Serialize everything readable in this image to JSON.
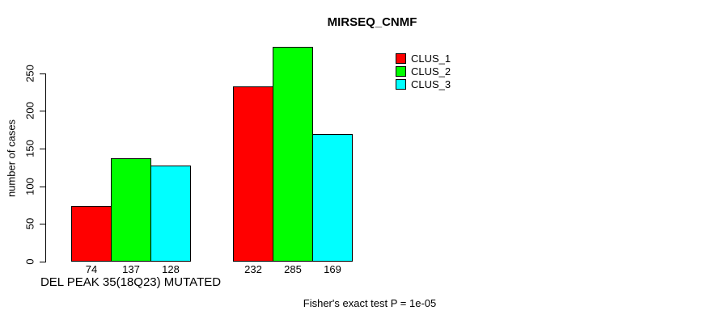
{
  "chart_data": {
    "type": "bar",
    "title": "MIRSEQ_CNMF",
    "ylabel": "number of cases",
    "xlabel": "",
    "group_label": "DEL PEAK 35(18Q23) MUTATED",
    "categories": [
      "DEL PEAK 35(18Q23) MUTATED",
      ""
    ],
    "series": [
      {
        "name": "CLUS_1",
        "color": "#ff0000",
        "values": [
          74,
          232
        ]
      },
      {
        "name": "CLUS_2",
        "color": "#00ff00",
        "values": [
          137,
          285
        ]
      },
      {
        "name": "CLUS_3",
        "color": "#00ffff",
        "values": [
          128,
          169
        ]
      }
    ],
    "yticks": [
      0,
      50,
      100,
      150,
      200,
      250
    ],
    "ylim": [
      0,
      290
    ],
    "grid": false,
    "legend_position": "top-right",
    "legend_box": false,
    "bar_border_color": "#000000",
    "annotation": "Fisher's exact test P = 1e-05"
  }
}
